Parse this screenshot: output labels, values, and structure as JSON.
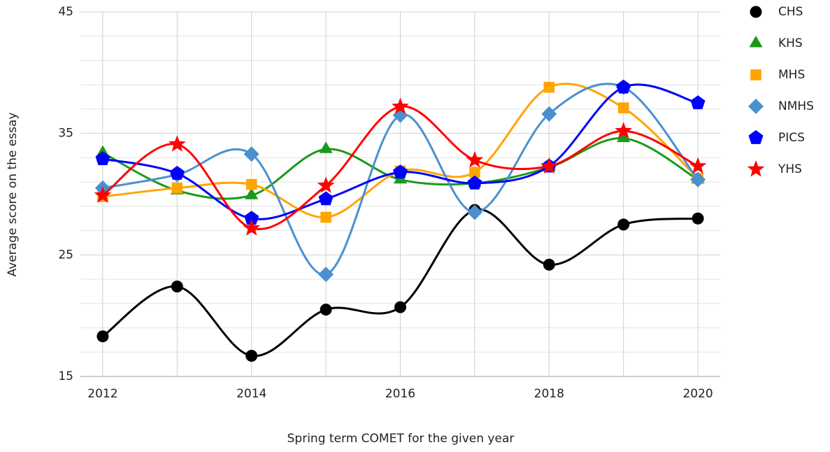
{
  "chart_data": {
    "type": "line",
    "xlabel": "Spring term COMET for the given year",
    "ylabel": "Average score on the essay",
    "x": [
      2012,
      2013,
      2014,
      2015,
      2016,
      2017,
      2018,
      2019,
      2020
    ],
    "xlim": [
      2011.7,
      2020.3
    ],
    "xticks": [
      2012,
      2014,
      2016,
      2018,
      2020
    ],
    "xminorticks": [
      2013,
      2015,
      2017,
      2019
    ],
    "ylim": [
      15,
      45
    ],
    "yticks": [
      15,
      25,
      35,
      45
    ],
    "yminorticks": [
      17,
      19,
      21,
      23,
      27,
      29,
      31,
      33,
      37,
      39,
      41,
      43
    ],
    "grid": true,
    "smooth": true,
    "legend": "right",
    "series": [
      {
        "name": "CHS",
        "color": "#000000",
        "marker": "circle",
        "values": [
          18.3,
          22.4,
          16.7,
          20.5,
          20.7,
          28.7,
          24.2,
          27.5,
          28.0
        ]
      },
      {
        "name": "KHS",
        "color": "#1a9a1a",
        "marker": "triangle",
        "values": [
          33.4,
          30.3,
          29.9,
          33.7,
          31.2,
          30.9,
          32.2,
          34.6,
          31.2
        ]
      },
      {
        "name": "MHS",
        "color": "#ffa500",
        "marker": "square",
        "values": [
          29.8,
          30.5,
          30.8,
          28.1,
          31.9,
          31.8,
          38.8,
          37.1,
          31.3
        ]
      },
      {
        "name": "NMHS",
        "color": "#4a90d0",
        "marker": "diamond",
        "values": [
          30.5,
          31.6,
          33.3,
          23.4,
          36.5,
          28.5,
          36.6,
          38.8,
          31.2
        ]
      },
      {
        "name": "PICS",
        "color": "#0000ff",
        "marker": "pentagon",
        "values": [
          32.9,
          31.7,
          28.0,
          29.6,
          31.8,
          30.9,
          32.3,
          38.8,
          37.5
        ]
      },
      {
        "name": "YHS",
        "color": "#ff0000",
        "marker": "star",
        "values": [
          29.9,
          34.1,
          27.2,
          30.7,
          37.2,
          32.8,
          32.3,
          35.2,
          32.3
        ]
      }
    ]
  }
}
